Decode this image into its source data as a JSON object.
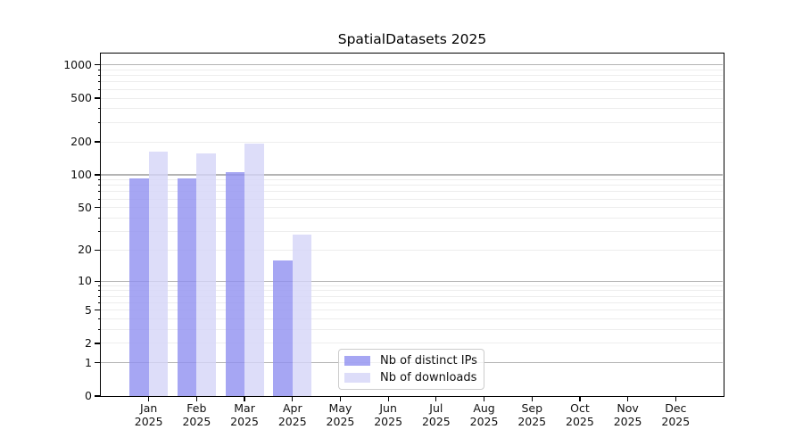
{
  "chart_data": {
    "type": "bar",
    "title": "SpatialDatasets 2025",
    "months": [
      "Jan",
      "Feb",
      "Mar",
      "Apr",
      "May",
      "Jun",
      "Jul",
      "Aug",
      "Sep",
      "Oct",
      "Nov",
      "Dec"
    ],
    "year": "2025",
    "xlabel": "",
    "ylabel": "",
    "y_scale": "log1p",
    "y_ticks": [
      0,
      1,
      2,
      5,
      10,
      20,
      50,
      100,
      200,
      500,
      1000
    ],
    "ylim": [
      0,
      1270
    ],
    "grid": {
      "major_lines": [
        1,
        10,
        100,
        1000
      ],
      "major_color": "#b4b4b4",
      "minor_color": "#ededed"
    },
    "legend_position": "lower center",
    "series": [
      {
        "name": "Nb of distinct IPs",
        "color": "#9090f0",
        "alpha": 0.8,
        "values": [
          93,
          93,
          106,
          16,
          0,
          0,
          0,
          0,
          0,
          0,
          0,
          0
        ]
      },
      {
        "name": "Nb of downloads",
        "color": "#d4d4f7",
        "alpha": 0.8,
        "values": [
          163,
          157,
          193,
          28,
          0,
          0,
          0,
          0,
          0,
          0,
          0,
          0
        ]
      }
    ]
  }
}
